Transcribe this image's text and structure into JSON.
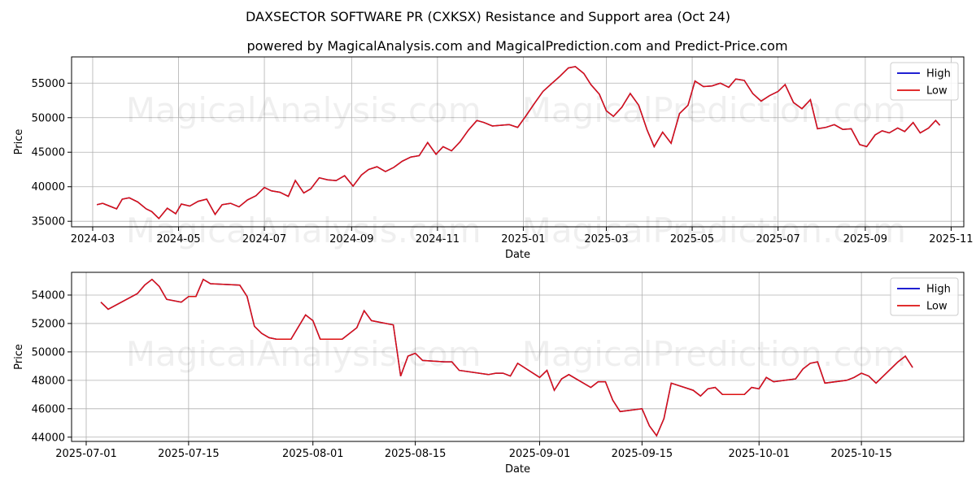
{
  "title": "DAXSECTOR SOFTWARE PR (CXKSX) Resistance and Support area (Oct 24)",
  "subtitle": "powered by MagicalAnalysis.com and MagicalPrediction.com and Predict-Price.com",
  "watermarks": [
    "MagicalAnalysis.com",
    "MagicalPrediction.com"
  ],
  "colors": {
    "high": "#0000cc",
    "low": "#dd1111"
  },
  "chart_data": [
    {
      "type": "line",
      "xlabel": "Date",
      "ylabel": "Price",
      "xlim": [
        "2024-02-15",
        "2025-11-10"
      ],
      "ylim": [
        34200,
        58800
      ],
      "xticks": [
        "2024-03",
        "2024-05",
        "2024-07",
        "2024-09",
        "2024-11",
        "2025-01",
        "2025-03",
        "2025-05",
        "2025-07",
        "2025-09",
        "2025-11"
      ],
      "xtick_dates": [
        "2024-03-01",
        "2024-05-01",
        "2024-07-01",
        "2024-09-01",
        "2024-11-01",
        "2025-01-01",
        "2025-03-01",
        "2025-05-01",
        "2025-07-01",
        "2025-09-01",
        "2025-11-01"
      ],
      "yticks": [
        35000,
        40000,
        45000,
        50000,
        55000
      ],
      "ytick_labels": [
        "35000",
        "40000",
        "45000",
        "50000",
        "55000"
      ],
      "grid": true,
      "legend": "top-right",
      "series": [
        {
          "name": "High",
          "color": "#0000cc"
        },
        {
          "name": "Low",
          "color": "#dd1111"
        }
      ],
      "x": [
        "2024-03-04",
        "2024-03-08",
        "2024-03-13",
        "2024-03-18",
        "2024-03-22",
        "2024-03-27",
        "2024-04-02",
        "2024-04-08",
        "2024-04-12",
        "2024-04-17",
        "2024-04-23",
        "2024-04-29",
        "2024-05-03",
        "2024-05-09",
        "2024-05-15",
        "2024-05-21",
        "2024-05-27",
        "2024-06-01",
        "2024-06-07",
        "2024-06-13",
        "2024-06-19",
        "2024-06-25",
        "2024-07-01",
        "2024-07-06",
        "2024-07-12",
        "2024-07-18",
        "2024-07-23",
        "2024-07-29",
        "2024-08-03",
        "2024-08-09",
        "2024-08-15",
        "2024-08-21",
        "2024-08-27",
        "2024-09-02",
        "2024-09-08",
        "2024-09-13",
        "2024-09-19",
        "2024-09-25",
        "2024-10-01",
        "2024-10-07",
        "2024-10-13",
        "2024-10-19",
        "2024-10-25",
        "2024-10-31",
        "2024-11-05",
        "2024-11-11",
        "2024-11-17",
        "2024-11-23",
        "2024-11-29",
        "2024-12-04",
        "2024-12-10",
        "2024-12-16",
        "2024-12-22",
        "2024-12-28",
        "2025-01-03",
        "2025-01-09",
        "2025-01-15",
        "2025-01-21",
        "2025-01-27",
        "2025-02-02",
        "2025-02-07",
        "2025-02-13",
        "2025-02-18",
        "2025-02-24",
        "2025-03-01",
        "2025-03-06",
        "2025-03-12",
        "2025-03-18",
        "2025-03-24",
        "2025-03-30",
        "2025-04-04",
        "2025-04-10",
        "2025-04-16",
        "2025-04-22",
        "2025-04-28",
        "2025-05-03",
        "2025-05-09",
        "2025-05-15",
        "2025-05-21",
        "2025-05-27",
        "2025-06-01",
        "2025-06-07",
        "2025-06-13",
        "2025-06-19",
        "2025-06-25",
        "2025-07-01",
        "2025-07-06",
        "2025-07-12",
        "2025-07-18",
        "2025-07-24",
        "2025-07-29",
        "2025-08-04",
        "2025-08-10",
        "2025-08-16",
        "2025-08-22",
        "2025-08-28",
        "2025-09-02",
        "2025-09-08",
        "2025-09-13",
        "2025-09-18",
        "2025-09-24",
        "2025-09-29",
        "2025-10-05",
        "2025-10-10",
        "2025-10-16",
        "2025-10-21",
        "2025-10-24"
      ],
      "high": [
        37400,
        37600,
        37200,
        36800,
        38200,
        38400,
        37800,
        36800,
        36400,
        35400,
        36900,
        36100,
        37500,
        37200,
        37900,
        38200,
        36000,
        37400,
        37600,
        37100,
        38100,
        38700,
        39900,
        39400,
        39200,
        38600,
        40900,
        39100,
        39700,
        41300,
        41000,
        40900,
        41600,
        40100,
        41700,
        42500,
        42900,
        42200,
        42800,
        43700,
        44300,
        44500,
        46400,
        44700,
        45800,
        45200,
        46500,
        48200,
        49600,
        49300,
        48800,
        48900,
        49000,
        48600,
        50300,
        52100,
        53800,
        54900,
        56000,
        57200,
        57400,
        56400,
        54800,
        53400,
        51000,
        50200,
        51500,
        53500,
        51800,
        48200,
        45800,
        47900,
        46300,
        50600,
        51800,
        55300,
        54500,
        54600,
        55000,
        54400,
        55600,
        55400,
        53500,
        52400,
        53200,
        53800,
        54800,
        52200,
        51300,
        52600,
        48400,
        48600,
        49000,
        48300,
        48400,
        46100,
        45800,
        47500,
        48100,
        47800,
        48500,
        48000,
        49300,
        47800,
        48500,
        49600,
        48900
      ],
      "low": [
        37400,
        37600,
        37200,
        36800,
        38200,
        38400,
        37800,
        36800,
        36400,
        35400,
        36900,
        36100,
        37500,
        37200,
        37900,
        38200,
        36000,
        37400,
        37600,
        37100,
        38100,
        38700,
        39900,
        39400,
        39200,
        38600,
        40900,
        39100,
        39700,
        41300,
        41000,
        40900,
        41600,
        40100,
        41700,
        42500,
        42900,
        42200,
        42800,
        43700,
        44300,
        44500,
        46400,
        44700,
        45800,
        45200,
        46500,
        48200,
        49600,
        49300,
        48800,
        48900,
        49000,
        48600,
        50300,
        52100,
        53800,
        54900,
        56000,
        57200,
        57400,
        56400,
        54800,
        53400,
        51000,
        50200,
        51500,
        53500,
        51800,
        48200,
        45800,
        47900,
        46300,
        50600,
        51800,
        55300,
        54500,
        54600,
        55000,
        54400,
        55600,
        55400,
        53500,
        52400,
        53200,
        53800,
        54800,
        52200,
        51300,
        52600,
        48400,
        48600,
        49000,
        48300,
        48400,
        46100,
        45800,
        47500,
        48100,
        47800,
        48500,
        48000,
        49300,
        47800,
        48500,
        49600,
        48900
      ]
    },
    {
      "type": "line",
      "xlabel": "Date",
      "ylabel": "Price",
      "xlim": [
        "2025-06-29",
        "2025-10-29"
      ],
      "ylim": [
        43700,
        55600
      ],
      "xticks": [
        "2025-07-01",
        "2025-07-15",
        "2025-08-01",
        "2025-08-15",
        "2025-09-01",
        "2025-09-15",
        "2025-10-01",
        "2025-10-15"
      ],
      "yticks": [
        44000,
        46000,
        48000,
        50000,
        52000,
        54000
      ],
      "ytick_labels": [
        "44000",
        "46000",
        "48000",
        "50000",
        "52000",
        "54000"
      ],
      "grid": true,
      "legend": "top-right",
      "series": [
        {
          "name": "High",
          "color": "#0000cc"
        },
        {
          "name": "Low",
          "color": "#dd1111"
        }
      ],
      "x": [
        "2025-07-03",
        "2025-07-04",
        "2025-07-08",
        "2025-07-09",
        "2025-07-10",
        "2025-07-11",
        "2025-07-12",
        "2025-07-14",
        "2025-07-15",
        "2025-07-16",
        "2025-07-17",
        "2025-07-18",
        "2025-07-22",
        "2025-07-23",
        "2025-07-24",
        "2025-07-25",
        "2025-07-26",
        "2025-07-27",
        "2025-07-29",
        "2025-07-31",
        "2025-08-01",
        "2025-08-02",
        "2025-08-05",
        "2025-08-07",
        "2025-08-08",
        "2025-08-09",
        "2025-08-12",
        "2025-08-13",
        "2025-08-14",
        "2025-08-15",
        "2025-08-16",
        "2025-08-19",
        "2025-08-20",
        "2025-08-21",
        "2025-08-25",
        "2025-08-26",
        "2025-08-27",
        "2025-08-28",
        "2025-08-29",
        "2025-09-01",
        "2025-09-02",
        "2025-09-03",
        "2025-09-04",
        "2025-09-05",
        "2025-09-08",
        "2025-09-09",
        "2025-09-10",
        "2025-09-11",
        "2025-09-12",
        "2025-09-15",
        "2025-09-16",
        "2025-09-17",
        "2025-09-18",
        "2025-09-19",
        "2025-09-22",
        "2025-09-23",
        "2025-09-24",
        "2025-09-25",
        "2025-09-26",
        "2025-09-29",
        "2025-09-30",
        "2025-10-01",
        "2025-10-02",
        "2025-10-03",
        "2025-10-06",
        "2025-10-07",
        "2025-10-08",
        "2025-10-09",
        "2025-10-10",
        "2025-10-13",
        "2025-10-14",
        "2025-10-15",
        "2025-10-16",
        "2025-10-17",
        "2025-10-20",
        "2025-10-21",
        "2025-10-22"
      ],
      "high": [
        53500,
        53000,
        54100,
        54700,
        55100,
        54600,
        53700,
        53500,
        53900,
        53900,
        55100,
        54800,
        54700,
        53900,
        51800,
        51300,
        51000,
        50900,
        50900,
        52600,
        52200,
        50900,
        50900,
        51700,
        52900,
        52200,
        51900,
        48300,
        49700,
        49900,
        49400,
        49300,
        49300,
        48700,
        48400,
        48500,
        48500,
        48300,
        49200,
        48200,
        48700,
        47300,
        48100,
        48400,
        47500,
        47900,
        47900,
        46600,
        45800,
        46000,
        44800,
        44100,
        45300,
        47800,
        47300,
        46900,
        47400,
        47500,
        47000,
        47000,
        47500,
        47400,
        48200,
        47900,
        48100,
        48800,
        49200,
        49300,
        47800,
        48000,
        48200,
        48500,
        48300,
        47800,
        49300,
        49700,
        48900
      ],
      "low": [
        53500,
        53000,
        54100,
        54700,
        55100,
        54600,
        53700,
        53500,
        53900,
        53900,
        55100,
        54800,
        54700,
        53900,
        51800,
        51300,
        51000,
        50900,
        50900,
        52600,
        52200,
        50900,
        50900,
        51700,
        52900,
        52200,
        51900,
        48300,
        49700,
        49900,
        49400,
        49300,
        49300,
        48700,
        48400,
        48500,
        48500,
        48300,
        49200,
        48200,
        48700,
        47300,
        48100,
        48400,
        47500,
        47900,
        47900,
        46600,
        45800,
        46000,
        44800,
        44100,
        45300,
        47800,
        47300,
        46900,
        47400,
        47500,
        47000,
        47000,
        47500,
        47400,
        48200,
        47900,
        48100,
        48800,
        49200,
        49300,
        47800,
        48000,
        48200,
        48500,
        48300,
        47800,
        49300,
        49700,
        48900
      ]
    }
  ]
}
